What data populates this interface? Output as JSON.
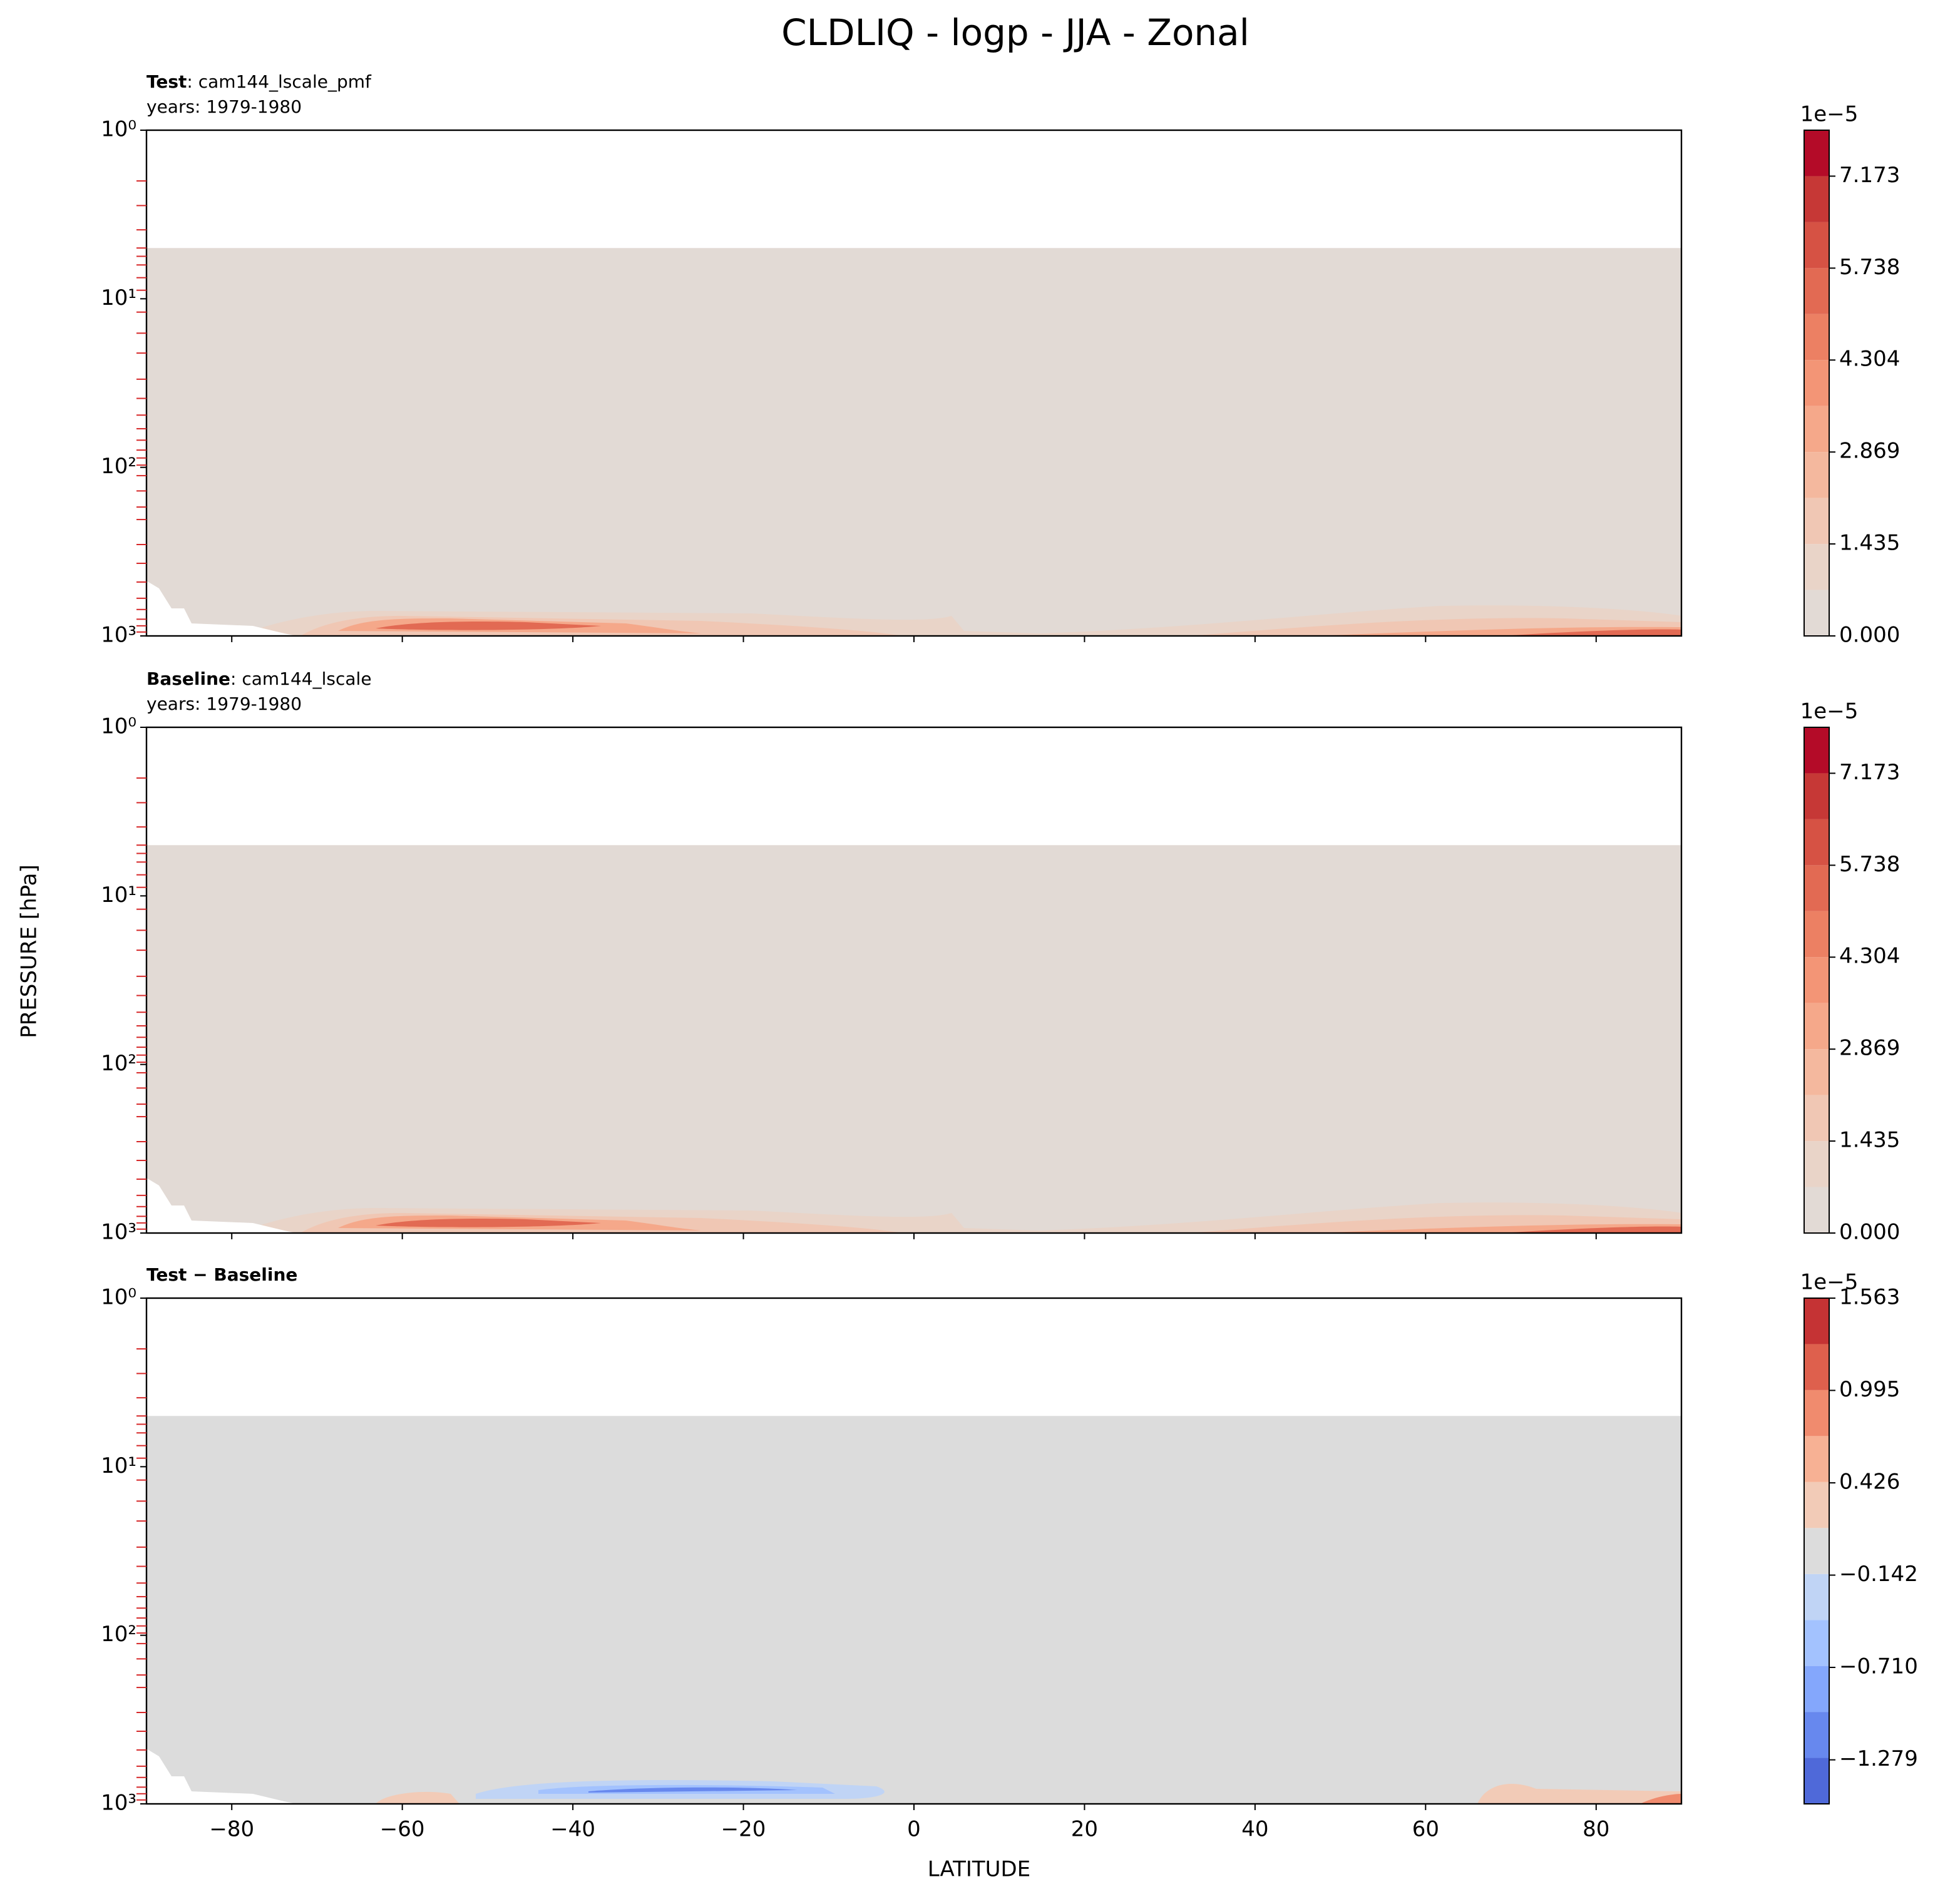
{
  "title": "CLDLIQ - logp - JJA - Zonal",
  "xlabel": "LATITUDE",
  "ylabel": "PRESSURE [hPa]",
  "chart_data": [
    {
      "type": "contour",
      "title_bold": "Test",
      "title": ": cam144_lscale_pmf",
      "subtitle": "years: 1979-1980",
      "xlim": [
        -90,
        90
      ],
      "xticks": [
        -80,
        -60,
        -40,
        -20,
        0,
        20,
        40,
        60,
        80
      ],
      "show_xticklabels": false,
      "ylim": [
        1000,
        1
      ],
      "log_y": true,
      "yticks": [
        {
          "value": 1,
          "label": "10⁰"
        },
        {
          "value": 10,
          "label": "10¹"
        },
        {
          "value": 100,
          "label": "10²"
        },
        {
          "value": 1000,
          "label": "10³"
        }
      ],
      "minor_yticks": [
        2,
        2.8,
        3.9,
        5,
        5.6,
        6.3,
        7.5,
        8.9,
        12,
        16,
        21,
        30,
        39,
        49,
        59,
        69,
        79,
        88,
        97,
        112,
        138,
        172,
        204,
        287,
        371,
        479,
        598,
        697,
        796,
        871,
        948
      ],
      "minor_tick_color": "#d62728",
      "colorbar": {
        "offset_label": "1e−5",
        "ylim": [
          0,
          7.89
        ],
        "ticks": [
          {
            "value": 0,
            "label": "0.000"
          },
          1.435,
          2.869,
          4.304,
          5.738,
          7.173
        ],
        "colors": [
          "#e2dad5",
          "#e9d4c8",
          "#f0c7b4",
          "#f4b89e",
          "#f5a88a",
          "#f39576",
          "#ec8063",
          "#e26a53",
          "#d65244",
          "#c63836",
          "#b40b28"
        ]
      }
    },
    {
      "type": "contour",
      "title_bold": "Baseline",
      "title": ": cam144_lscale",
      "subtitle": "years: 1979-1980",
      "xlim": [
        -90,
        90
      ],
      "xticks": [
        -80,
        -60,
        -40,
        -20,
        0,
        20,
        40,
        60,
        80
      ],
      "show_xticklabels": false,
      "ylim": [
        1000,
        1
      ],
      "log_y": true,
      "yticks": [
        {
          "value": 1,
          "label": "10⁰"
        },
        {
          "value": 10,
          "label": "10¹"
        },
        {
          "value": 100,
          "label": "10²"
        },
        {
          "value": 1000,
          "label": "10³"
        }
      ],
      "minor_yticks": [
        2,
        2.8,
        3.9,
        5,
        5.6,
        6.3,
        7.5,
        8.9,
        12,
        16,
        21,
        30,
        39,
        49,
        59,
        69,
        79,
        88,
        97,
        112,
        138,
        172,
        204,
        287,
        371,
        479,
        598,
        697,
        796,
        871,
        948
      ],
      "minor_tick_color": "#d62728",
      "colorbar": {
        "offset_label": "1e−5",
        "ylim": [
          0,
          7.89
        ],
        "ticks": [
          {
            "value": 0,
            "label": "0.000"
          },
          1.435,
          2.869,
          4.304,
          5.738,
          7.173
        ],
        "colors": [
          "#e2dad5",
          "#e9d4c8",
          "#f0c7b4",
          "#f4b89e",
          "#f5a88a",
          "#f39576",
          "#ec8063",
          "#e26a53",
          "#d65244",
          "#c63836",
          "#b40b28"
        ]
      }
    },
    {
      "type": "contour",
      "title_bold": "Test − Baseline",
      "xlim": [
        -90,
        90
      ],
      "xticks": [
        {
          "value": -80,
          "label": "−80"
        },
        {
          "value": -60,
          "label": "−60"
        },
        {
          "value": -40,
          "label": "−40"
        },
        {
          "value": -20,
          "label": "−20"
        },
        0,
        20,
        40,
        60,
        80
      ],
      "show_xticklabels": true,
      "ylim": [
        1000,
        1
      ],
      "log_y": true,
      "yticks": [
        {
          "value": 1,
          "label": "10⁰"
        },
        {
          "value": 10,
          "label": "10¹"
        },
        {
          "value": 100,
          "label": "10²"
        },
        {
          "value": 1000,
          "label": "10³"
        }
      ],
      "minor_yticks": [
        2,
        2.8,
        3.9,
        5,
        5.6,
        6.3,
        7.5,
        8.9,
        12,
        16,
        21,
        30,
        39,
        49,
        59,
        69,
        79,
        88,
        97,
        112,
        138,
        172,
        204,
        287,
        371,
        479,
        598,
        697,
        796,
        871,
        948
      ],
      "minor_tick_color": "#d62728",
      "colorbar": {
        "offset_label": "1e−5",
        "ylim": [
          -1.55,
          1.563
        ],
        "ticks": [
          {
            "value": -1.279,
            "label": "−1.279"
          },
          {
            "value": -0.71,
            "label": "−0.710"
          },
          {
            "value": -0.142,
            "label": "−0.142"
          },
          0.426,
          0.995,
          1.563
        ],
        "colors": [
          "#4f69d9",
          "#6788ee",
          "#84a7fc",
          "#a3c2fe",
          "#c0d4f5",
          "#dcdcdc",
          "#f2cbb7",
          "#f7b194",
          "#f08b6e",
          "#de604d",
          "#c53334"
        ]
      }
    }
  ]
}
